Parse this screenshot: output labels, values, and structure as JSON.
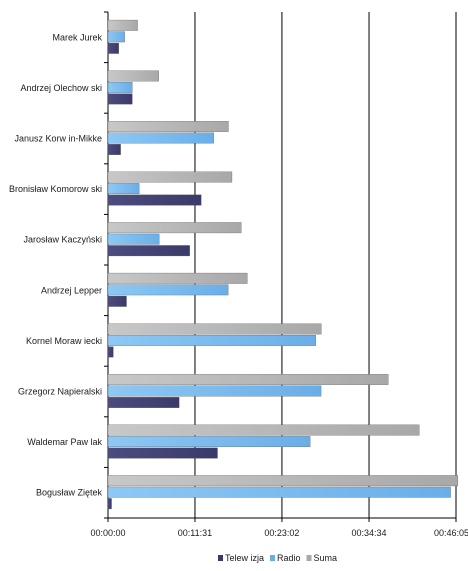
{
  "chart_data": {
    "type": "bar",
    "orientation": "horizontal",
    "categories": [
      "Marek Jurek",
      "Andrzej Olechow ski",
      "Janusz Korw in-Mikke",
      "Bronisław  Komorow ski",
      "Jarosław  Kaczyński",
      "Andrzej Lepper",
      "Kornel Moraw iecki",
      "Grzegorz  Napieralski",
      "Waldemar Paw lak",
      "Bogusław  Ziętek"
    ],
    "series": [
      {
        "name": "Telew izja",
        "color": "#3a3a6a",
        "values": [
          85,
          193,
          100,
          740,
          649,
          147,
          42,
          565,
          870,
          28
        ]
      },
      {
        "name": "Radio",
        "color": "#6aaee8",
        "values": [
          132,
          193,
          840,
          248,
          407,
          955,
          1651,
          1693,
          1606,
          2722
        ]
      },
      {
        "name": "Suma",
        "color": "#a8a8a8",
        "values": [
          235,
          403,
          957,
          985,
          1059,
          1107,
          1695,
          2226,
          2473,
          2780
        ]
      }
    ],
    "xlim_seconds": [
      0,
      2765
    ],
    "xticks": [
      "00:00:00",
      "00:11:31",
      "00:23:02",
      "00:34:34",
      "00:46:05"
    ],
    "xticks_seconds": [
      0,
      691,
      1382,
      2074,
      2765
    ],
    "grid": true,
    "legend_position": "bottom",
    "title": "",
    "xlabel": "",
    "ylabel": ""
  }
}
